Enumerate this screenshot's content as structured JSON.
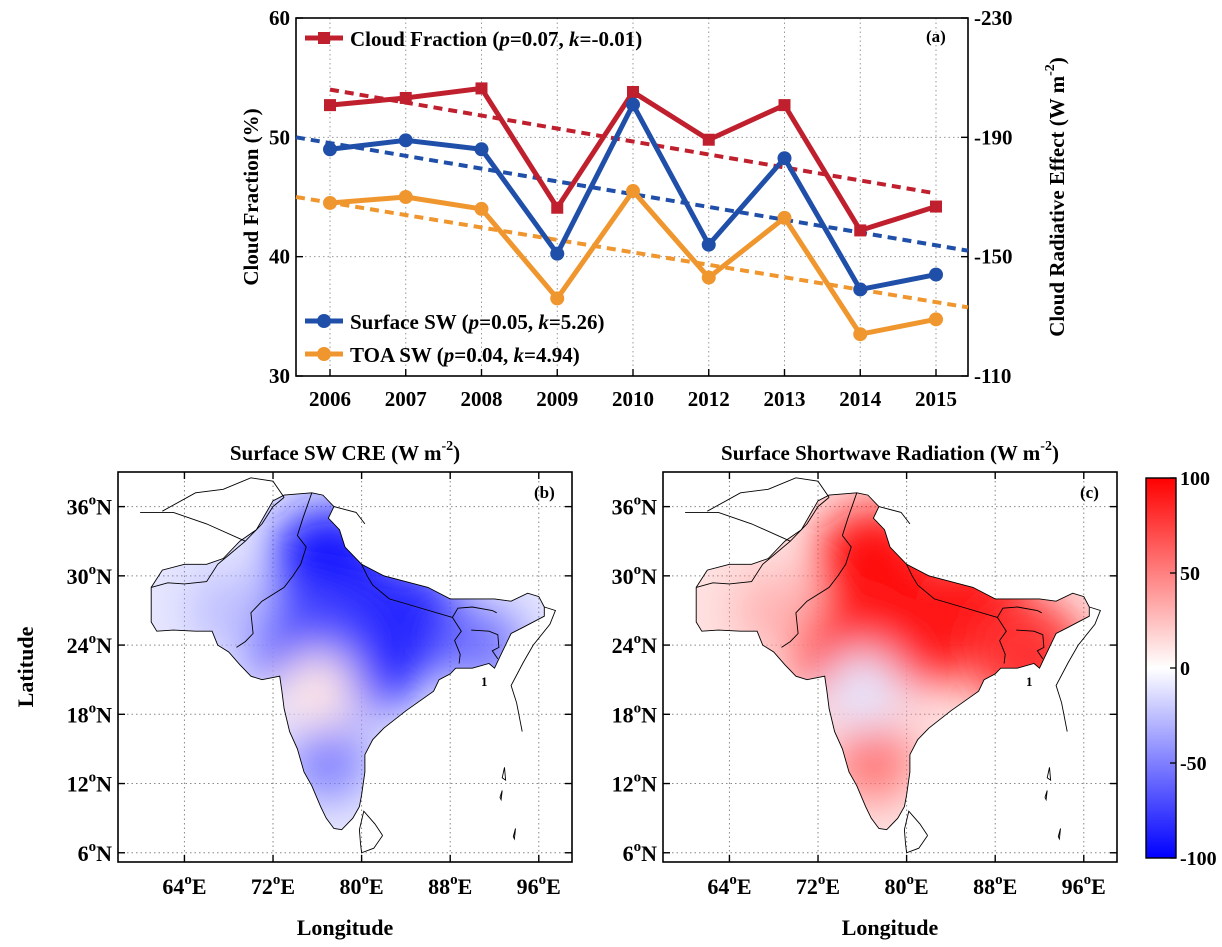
{
  "chart_data": [
    {
      "type": "line",
      "panel_label": "(a)",
      "categories": [
        "2006",
        "2007",
        "2008",
        "2009",
        "2010",
        "2012",
        "2013",
        "2014",
        "2015"
      ],
      "ylabel": "Cloud Fraction (%)",
      "ylabel2_main": "Cloud Radiative Effect (W m",
      "ylabel2_sup": "-2",
      "ylabel2_close": ")",
      "ylim": [
        30,
        60
      ],
      "yticks": [
        "30",
        "40",
        "50",
        "60"
      ],
      "y2lim": [
        -110,
        -230
      ],
      "y2ticks": [
        "-110",
        "-150",
        "-190",
        "-230"
      ],
      "grid": true,
      "series": [
        {
          "name": "Cloud Fraction",
          "stats": "(p=0.07, k=-0.01)",
          "legend_parts": [
            "Cloud Fraction (",
            "p",
            "=0.07, ",
            "k",
            "=-0.01)"
          ],
          "axis": "left",
          "color": "#c0202e",
          "marker": "square",
          "values": [
            52.7,
            53.3,
            54.1,
            44.1,
            53.8,
            49.8,
            52.7,
            42.2,
            44.2
          ],
          "trend": [
            54.0,
            45.3
          ]
        },
        {
          "name": "Surface SW",
          "stats": "(p=0.05, k=5.26)",
          "legend_parts": [
            "Surface SW (",
            "p",
            "=0.05, ",
            "k",
            "=5.26)"
          ],
          "axis": "right",
          "color": "#1f4fa8",
          "marker": "circle",
          "values": [
            -186,
            -189,
            -186,
            -151,
            -201,
            -154,
            -183,
            -139,
            -144
          ],
          "trend": [
            -190,
            -152
          ]
        },
        {
          "name": "TOA SW",
          "stats": "(p=0.04, k=4.94)",
          "legend_parts": [
            "TOA SW (",
            "p",
            "=0.04, ",
            "k",
            "=4.94)"
          ],
          "axis": "right",
          "color": "#f0962e",
          "marker": "circle",
          "values": [
            -168,
            -170,
            -166,
            -136,
            -172,
            -143,
            -163,
            -124,
            -129
          ],
          "trend": [
            -170,
            -133
          ]
        }
      ]
    },
    {
      "type": "heatmap",
      "panel_label": "(b)",
      "title_main": "Surface SW CRE (W m",
      "title_sup": "-2",
      "title_close": ")",
      "xlabel": "Longitude",
      "ylabel": "Latitude",
      "lon_ticks": [
        "64",
        "72",
        "80",
        "88",
        "96"
      ],
      "lon_suffix": "E",
      "lat_ticks": [
        "36",
        "30",
        "24",
        "18",
        "12",
        "6"
      ],
      "lat_suffix": "N",
      "degree": "o",
      "hotspots": [
        {
          "lon": 80,
          "lat": 23,
          "value": -95
        },
        {
          "lon": 77,
          "lat": 31,
          "value": -90
        },
        {
          "lon": 84,
          "lat": 26,
          "value": -85
        },
        {
          "lon": 75,
          "lat": 24,
          "value": -70
        },
        {
          "lon": 91,
          "lat": 24,
          "value": -55
        },
        {
          "lon": 68,
          "lat": 27,
          "value": -25
        },
        {
          "lon": 77,
          "lat": 14,
          "value": -50
        },
        {
          "lon": 76,
          "lat": 20,
          "value": 10
        }
      ]
    },
    {
      "type": "heatmap",
      "panel_label": "(c)",
      "title_main": "Surface Shortwave Radiation (W m",
      "title_sup": "-2",
      "title_close": ")",
      "xlabel": "Longitude",
      "lon_ticks": [
        "64",
        "72",
        "80",
        "88",
        "96"
      ],
      "lon_suffix": "E",
      "lat_ticks": [
        "36",
        "30",
        "24",
        "18",
        "12",
        "6"
      ],
      "lat_suffix": "N",
      "degree": "o",
      "hotspots": [
        {
          "lon": 80,
          "lat": 25,
          "value": 100
        },
        {
          "lon": 77,
          "lat": 31,
          "value": 95
        },
        {
          "lon": 86,
          "lat": 27,
          "value": 90
        },
        {
          "lon": 75,
          "lat": 23,
          "value": 85
        },
        {
          "lon": 91,
          "lat": 23,
          "value": 80
        },
        {
          "lon": 68,
          "lat": 27,
          "value": 30
        },
        {
          "lon": 77,
          "lat": 14,
          "value": 55
        },
        {
          "lon": 76,
          "lat": 20,
          "value": -10
        }
      ]
    }
  ],
  "colorbar": {
    "ticks": [
      "100",
      "50",
      "0",
      "-50",
      "-100"
    ],
    "range": [
      -100,
      100
    ],
    "colors": {
      "low": "#0000ff",
      "mid": "#ffffff",
      "high": "#ff0000"
    }
  },
  "map_annotation": "1"
}
